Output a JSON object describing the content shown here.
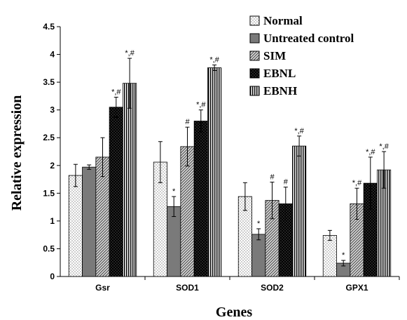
{
  "chart_data": {
    "type": "bar",
    "title": "",
    "xlabel": "Genes",
    "ylabel": "Relative expression",
    "ylim": [
      0,
      4.5
    ],
    "yticks": [
      "0",
      "0.5",
      "1",
      "1.5",
      "2",
      "2.5",
      "3",
      "3.5",
      "4",
      "4.5"
    ],
    "ytick_values": [
      0,
      0.5,
      1,
      1.5,
      2,
      2.5,
      3,
      3.5,
      4,
      4.5
    ],
    "categories": [
      "Gsr",
      "SOD1",
      "SOD2",
      "GPX1"
    ],
    "legend_position": "top-right",
    "grid": false,
    "series": [
      {
        "name": "Normal",
        "pattern": "dots",
        "values": [
          1.82,
          2.06,
          1.44,
          0.74
        ],
        "errors": [
          0.2,
          0.37,
          0.25,
          0.09
        ],
        "annotations": [
          "",
          "",
          "",
          ""
        ]
      },
      {
        "name": "Untreated control",
        "pattern": "solid-gray",
        "values": [
          1.97,
          1.26,
          0.76,
          0.24
        ],
        "errors": [
          0.04,
          0.18,
          0.1,
          0.05
        ],
        "annotations": [
          "",
          "*",
          "*",
          "*"
        ]
      },
      {
        "name": "SIM",
        "pattern": "diagonal",
        "values": [
          2.15,
          2.34,
          1.37,
          1.31
        ],
        "errors": [
          0.35,
          0.35,
          0.33,
          0.28
        ],
        "annotations": [
          "",
          "#",
          "#",
          "*,#"
        ]
      },
      {
        "name": "EBNL",
        "pattern": "black-dots",
        "values": [
          3.05,
          2.8,
          1.31,
          1.68
        ],
        "errors": [
          0.18,
          0.2,
          0.3,
          0.47
        ],
        "annotations": [
          "*,#",
          "*,#",
          "#",
          "*,#"
        ]
      },
      {
        "name": "EBNH",
        "pattern": "vertical-lines",
        "values": [
          3.48,
          3.76,
          2.35,
          1.92
        ],
        "errors": [
          0.45,
          0.05,
          0.18,
          0.33
        ],
        "annotations": [
          "*,#",
          "*,#",
          "*,#",
          "*,#"
        ]
      }
    ]
  }
}
